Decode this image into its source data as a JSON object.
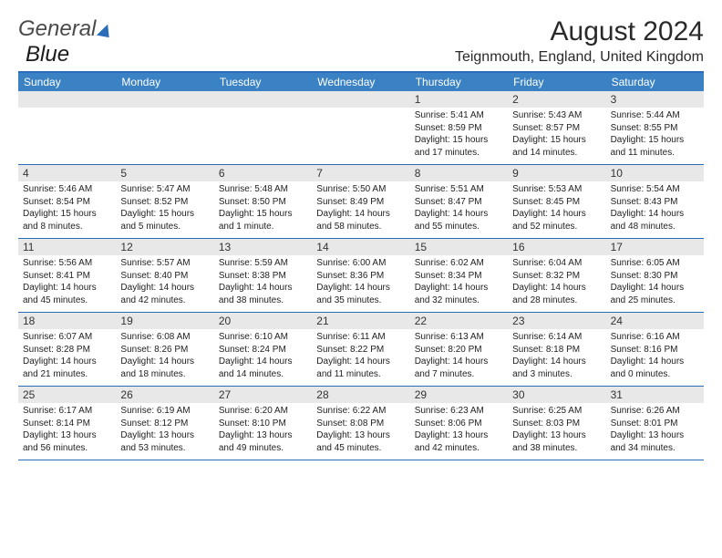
{
  "logo": {
    "general": "General",
    "blue": "Blue"
  },
  "title": "August 2024",
  "location": "Teignmouth, England, United Kingdom",
  "colors": {
    "header_bar": "#3b82c4",
    "week_border": "#2a6db8",
    "daynum_bg": "#e8e8e8",
    "text": "#1a1a1a",
    "logo_blue": "#2a6db8"
  },
  "day_names": [
    "Sunday",
    "Monday",
    "Tuesday",
    "Wednesday",
    "Thursday",
    "Friday",
    "Saturday"
  ],
  "weeks": [
    [
      {
        "n": "",
        "sr": "",
        "ss": "",
        "dl": ""
      },
      {
        "n": "",
        "sr": "",
        "ss": "",
        "dl": ""
      },
      {
        "n": "",
        "sr": "",
        "ss": "",
        "dl": ""
      },
      {
        "n": "",
        "sr": "",
        "ss": "",
        "dl": ""
      },
      {
        "n": "1",
        "sr": "Sunrise: 5:41 AM",
        "ss": "Sunset: 8:59 PM",
        "dl": "Daylight: 15 hours and 17 minutes."
      },
      {
        "n": "2",
        "sr": "Sunrise: 5:43 AM",
        "ss": "Sunset: 8:57 PM",
        "dl": "Daylight: 15 hours and 14 minutes."
      },
      {
        "n": "3",
        "sr": "Sunrise: 5:44 AM",
        "ss": "Sunset: 8:55 PM",
        "dl": "Daylight: 15 hours and 11 minutes."
      }
    ],
    [
      {
        "n": "4",
        "sr": "Sunrise: 5:46 AM",
        "ss": "Sunset: 8:54 PM",
        "dl": "Daylight: 15 hours and 8 minutes."
      },
      {
        "n": "5",
        "sr": "Sunrise: 5:47 AM",
        "ss": "Sunset: 8:52 PM",
        "dl": "Daylight: 15 hours and 5 minutes."
      },
      {
        "n": "6",
        "sr": "Sunrise: 5:48 AM",
        "ss": "Sunset: 8:50 PM",
        "dl": "Daylight: 15 hours and 1 minute."
      },
      {
        "n": "7",
        "sr": "Sunrise: 5:50 AM",
        "ss": "Sunset: 8:49 PM",
        "dl": "Daylight: 14 hours and 58 minutes."
      },
      {
        "n": "8",
        "sr": "Sunrise: 5:51 AM",
        "ss": "Sunset: 8:47 PM",
        "dl": "Daylight: 14 hours and 55 minutes."
      },
      {
        "n": "9",
        "sr": "Sunrise: 5:53 AM",
        "ss": "Sunset: 8:45 PM",
        "dl": "Daylight: 14 hours and 52 minutes."
      },
      {
        "n": "10",
        "sr": "Sunrise: 5:54 AM",
        "ss": "Sunset: 8:43 PM",
        "dl": "Daylight: 14 hours and 48 minutes."
      }
    ],
    [
      {
        "n": "11",
        "sr": "Sunrise: 5:56 AM",
        "ss": "Sunset: 8:41 PM",
        "dl": "Daylight: 14 hours and 45 minutes."
      },
      {
        "n": "12",
        "sr": "Sunrise: 5:57 AM",
        "ss": "Sunset: 8:40 PM",
        "dl": "Daylight: 14 hours and 42 minutes."
      },
      {
        "n": "13",
        "sr": "Sunrise: 5:59 AM",
        "ss": "Sunset: 8:38 PM",
        "dl": "Daylight: 14 hours and 38 minutes."
      },
      {
        "n": "14",
        "sr": "Sunrise: 6:00 AM",
        "ss": "Sunset: 8:36 PM",
        "dl": "Daylight: 14 hours and 35 minutes."
      },
      {
        "n": "15",
        "sr": "Sunrise: 6:02 AM",
        "ss": "Sunset: 8:34 PM",
        "dl": "Daylight: 14 hours and 32 minutes."
      },
      {
        "n": "16",
        "sr": "Sunrise: 6:04 AM",
        "ss": "Sunset: 8:32 PM",
        "dl": "Daylight: 14 hours and 28 minutes."
      },
      {
        "n": "17",
        "sr": "Sunrise: 6:05 AM",
        "ss": "Sunset: 8:30 PM",
        "dl": "Daylight: 14 hours and 25 minutes."
      }
    ],
    [
      {
        "n": "18",
        "sr": "Sunrise: 6:07 AM",
        "ss": "Sunset: 8:28 PM",
        "dl": "Daylight: 14 hours and 21 minutes."
      },
      {
        "n": "19",
        "sr": "Sunrise: 6:08 AM",
        "ss": "Sunset: 8:26 PM",
        "dl": "Daylight: 14 hours and 18 minutes."
      },
      {
        "n": "20",
        "sr": "Sunrise: 6:10 AM",
        "ss": "Sunset: 8:24 PM",
        "dl": "Daylight: 14 hours and 14 minutes."
      },
      {
        "n": "21",
        "sr": "Sunrise: 6:11 AM",
        "ss": "Sunset: 8:22 PM",
        "dl": "Daylight: 14 hours and 11 minutes."
      },
      {
        "n": "22",
        "sr": "Sunrise: 6:13 AM",
        "ss": "Sunset: 8:20 PM",
        "dl": "Daylight: 14 hours and 7 minutes."
      },
      {
        "n": "23",
        "sr": "Sunrise: 6:14 AM",
        "ss": "Sunset: 8:18 PM",
        "dl": "Daylight: 14 hours and 3 minutes."
      },
      {
        "n": "24",
        "sr": "Sunrise: 6:16 AM",
        "ss": "Sunset: 8:16 PM",
        "dl": "Daylight: 14 hours and 0 minutes."
      }
    ],
    [
      {
        "n": "25",
        "sr": "Sunrise: 6:17 AM",
        "ss": "Sunset: 8:14 PM",
        "dl": "Daylight: 13 hours and 56 minutes."
      },
      {
        "n": "26",
        "sr": "Sunrise: 6:19 AM",
        "ss": "Sunset: 8:12 PM",
        "dl": "Daylight: 13 hours and 53 minutes."
      },
      {
        "n": "27",
        "sr": "Sunrise: 6:20 AM",
        "ss": "Sunset: 8:10 PM",
        "dl": "Daylight: 13 hours and 49 minutes."
      },
      {
        "n": "28",
        "sr": "Sunrise: 6:22 AM",
        "ss": "Sunset: 8:08 PM",
        "dl": "Daylight: 13 hours and 45 minutes."
      },
      {
        "n": "29",
        "sr": "Sunrise: 6:23 AM",
        "ss": "Sunset: 8:06 PM",
        "dl": "Daylight: 13 hours and 42 minutes."
      },
      {
        "n": "30",
        "sr": "Sunrise: 6:25 AM",
        "ss": "Sunset: 8:03 PM",
        "dl": "Daylight: 13 hours and 38 minutes."
      },
      {
        "n": "31",
        "sr": "Sunrise: 6:26 AM",
        "ss": "Sunset: 8:01 PM",
        "dl": "Daylight: 13 hours and 34 minutes."
      }
    ]
  ]
}
